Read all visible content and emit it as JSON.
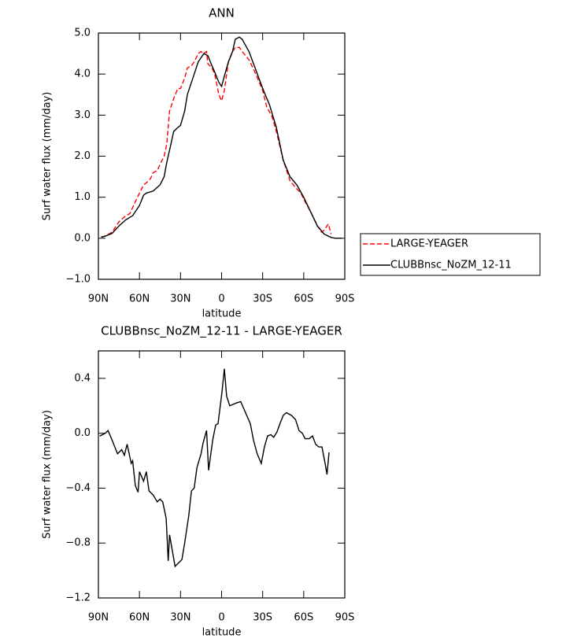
{
  "chart_data": [
    {
      "type": "line",
      "title": "ANN",
      "x_label": "latitude",
      "y_label": "Surf water flux (mm/day)",
      "xlim": [
        90,
        -90
      ],
      "ylim": [
        -1,
        5
      ],
      "xticks": [
        {
          "value": 90,
          "label": "90N"
        },
        {
          "value": 60,
          "label": "60N"
        },
        {
          "value": 30,
          "label": "30N"
        },
        0,
        {
          "value": -30,
          "label": "30S"
        },
        {
          "value": -60,
          "label": "60S"
        },
        {
          "value": -90,
          "label": "90S"
        }
      ],
      "yticks": [
        {
          "value": 5,
          "label": "5.0"
        },
        {
          "value": 4,
          "label": "4.0"
        },
        {
          "value": 3,
          "label": "3.0"
        },
        {
          "value": 2,
          "label": "2.0"
        },
        {
          "value": 1,
          "label": "1.0"
        },
        {
          "value": 0,
          "label": "0.0"
        },
        {
          "value": -1,
          "label": "−1.0"
        }
      ],
      "legend": "right",
      "series": [
        {
          "name": "LARGE-YEAGER",
          "color": "#ff0000",
          "line_style": "dashed",
          "x": [
            88,
            85,
            80,
            75,
            70,
            67,
            65,
            60,
            57,
            55,
            52,
            50,
            47,
            45,
            42,
            40,
            38,
            35,
            32,
            30,
            27,
            25,
            22,
            20,
            17,
            15,
            13,
            11,
            10,
            7,
            5,
            2,
            0,
            -2,
            -5,
            -8,
            -10,
            -13,
            -15,
            -20,
            -25,
            -30,
            -33,
            -37,
            -40,
            -45,
            -50,
            -55,
            -58,
            -60,
            -65,
            -70,
            -73,
            -75,
            -78,
            -80
          ],
          "values": [
            0.03,
            0.05,
            0.15,
            0.4,
            0.55,
            0.6,
            0.75,
            1.1,
            1.3,
            1.35,
            1.45,
            1.6,
            1.65,
            1.8,
            2.0,
            2.3,
            3.1,
            3.4,
            3.65,
            3.65,
            3.9,
            4.15,
            4.2,
            4.3,
            4.5,
            4.55,
            4.5,
            4.55,
            4.25,
            4.15,
            4.0,
            3.5,
            3.35,
            3.6,
            4.3,
            4.55,
            4.65,
            4.65,
            4.55,
            4.35,
            4.0,
            3.6,
            3.2,
            2.95,
            2.6,
            1.9,
            1.4,
            1.2,
            1.1,
            0.95,
            0.65,
            0.3,
            0.15,
            0.2,
            0.35,
            0.1
          ]
        },
        {
          "name": "CLUBBnsc_NoZM_12-11",
          "color": "#000000",
          "line_style": "solid",
          "x": [
            88,
            85,
            80,
            75,
            70,
            65,
            60,
            57,
            55,
            50,
            45,
            42,
            40,
            37,
            35,
            32,
            30,
            27,
            25,
            20,
            17,
            13,
            10,
            7,
            5,
            2,
            0,
            -2,
            -5,
            -8,
            -10,
            -13,
            -15,
            -20,
            -25,
            -30,
            -35,
            -40,
            -45,
            -50,
            -55,
            -60,
            -65,
            -70,
            -75,
            -80,
            -83,
            -88
          ],
          "values": [
            0.03,
            0.05,
            0.12,
            0.3,
            0.45,
            0.55,
            0.8,
            1.05,
            1.1,
            1.15,
            1.3,
            1.5,
            1.85,
            2.3,
            2.6,
            2.7,
            2.75,
            3.1,
            3.5,
            4.0,
            4.3,
            4.5,
            4.45,
            4.2,
            4.05,
            3.8,
            3.7,
            3.95,
            4.3,
            4.55,
            4.85,
            4.9,
            4.85,
            4.55,
            4.1,
            3.65,
            3.25,
            2.7,
            1.9,
            1.5,
            1.3,
            1.0,
            0.65,
            0.3,
            0.1,
            0.02,
            0.0,
            0.0
          ]
        }
      ]
    },
    {
      "type": "line",
      "title": "CLUBBnsc_NoZM_12-11 - LARGE-YEAGER",
      "x_label": "latitude",
      "y_label": "Surf water flux (mm/day)",
      "xlim": [
        90,
        -90
      ],
      "ylim": [
        -1.2,
        0.6
      ],
      "xticks": [
        {
          "value": 90,
          "label": "90N"
        },
        {
          "value": 60,
          "label": "60N"
        },
        {
          "value": 30,
          "label": "30N"
        },
        0,
        {
          "value": -30,
          "label": "30S"
        },
        {
          "value": -60,
          "label": "60S"
        },
        {
          "value": -90,
          "label": "90S"
        }
      ],
      "yticks": [
        0.4,
        {
          "value": 0,
          "label": "0.0"
        },
        {
          "value": -0.4,
          "label": "−0.4"
        },
        {
          "value": -0.8,
          "label": "−0.8"
        },
        {
          "value": -1.2,
          "label": "−1.2"
        }
      ],
      "color": "#000000",
      "x": [
        89,
        85,
        83,
        80,
        76,
        73,
        71,
        69,
        66,
        65,
        63,
        61,
        60,
        57,
        55,
        53,
        50,
        47,
        45,
        43,
        40.5,
        39,
        38,
        34,
        32,
        29,
        27,
        24,
        22,
        20,
        18,
        15,
        13.5,
        11,
        9.5,
        6.5,
        4.3,
        2.6,
        -0.3,
        -2,
        -3.7,
        -6,
        -8.3,
        -10.6,
        -14,
        -17.5,
        -21,
        -23.3,
        -26,
        -29,
        -31.3,
        -33.6,
        -36,
        -38,
        -40.5,
        -43,
        -45,
        -47.4,
        -51,
        -54,
        -56.6,
        -59,
        -61,
        -64,
        -66.4,
        -68.7,
        -71,
        -73.3,
        -75.6,
        -77,
        -78.5
      ],
      "values": [
        -0.02,
        0.0,
        0.02,
        -0.05,
        -0.15,
        -0.12,
        -0.16,
        -0.08,
        -0.22,
        -0.2,
        -0.38,
        -0.43,
        -0.28,
        -0.35,
        -0.28,
        -0.42,
        -0.45,
        -0.5,
        -0.48,
        -0.5,
        -0.62,
        -0.93,
        -0.74,
        -0.97,
        -0.95,
        -0.92,
        -0.8,
        -0.6,
        -0.42,
        -0.4,
        -0.25,
        -0.15,
        -0.07,
        0.02,
        -0.27,
        -0.05,
        0.06,
        0.07,
        0.3,
        0.47,
        0.27,
        0.2,
        0.21,
        0.22,
        0.23,
        0.15,
        0.07,
        -0.05,
        -0.15,
        -0.22,
        -0.1,
        -0.02,
        -0.01,
        -0.03,
        0.01,
        0.08,
        0.13,
        0.15,
        0.13,
        0.1,
        0.02,
        0.0,
        -0.04,
        -0.04,
        -0.02,
        -0.08,
        -0.1,
        -0.1,
        -0.22,
        -0.3,
        -0.14
      ]
    }
  ]
}
